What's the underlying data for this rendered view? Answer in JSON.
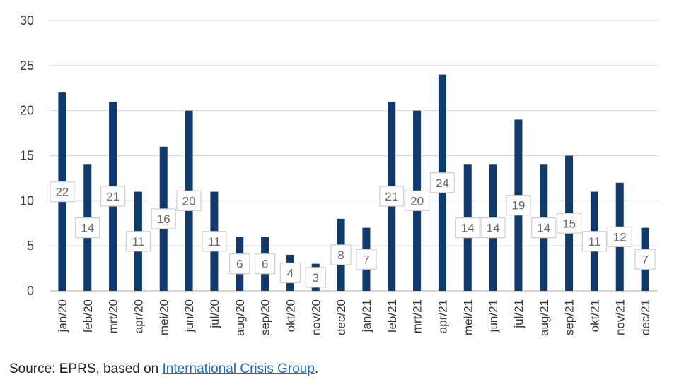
{
  "chart_data": {
    "type": "bar",
    "categories": [
      "jan/20",
      "feb/20",
      "mrt/20",
      "apr/20",
      "mei/20",
      "jun/20",
      "jul/20",
      "aug/20",
      "sep/20",
      "okt/20",
      "nov/20",
      "dec/20",
      "jan/21",
      "feb/21",
      "mrt/21",
      "apr/21",
      "mei/21",
      "jun/21",
      "jul/21",
      "aug/21",
      "sep/21",
      "okt/21",
      "nov/21",
      "dec/21"
    ],
    "values": [
      22,
      14,
      21,
      11,
      16,
      20,
      11,
      6,
      6,
      4,
      3,
      8,
      7,
      21,
      20,
      24,
      14,
      14,
      19,
      14,
      15,
      11,
      12,
      7
    ],
    "ylim": [
      0,
      30
    ],
    "yticks": [
      0,
      5,
      10,
      15,
      20,
      25,
      30
    ],
    "grid": true,
    "bar_color": "#0f3a6b"
  },
  "source": {
    "prefix": "Source: EPRS, based on ",
    "link_text": "International Crisis Group",
    "suffix": "."
  }
}
